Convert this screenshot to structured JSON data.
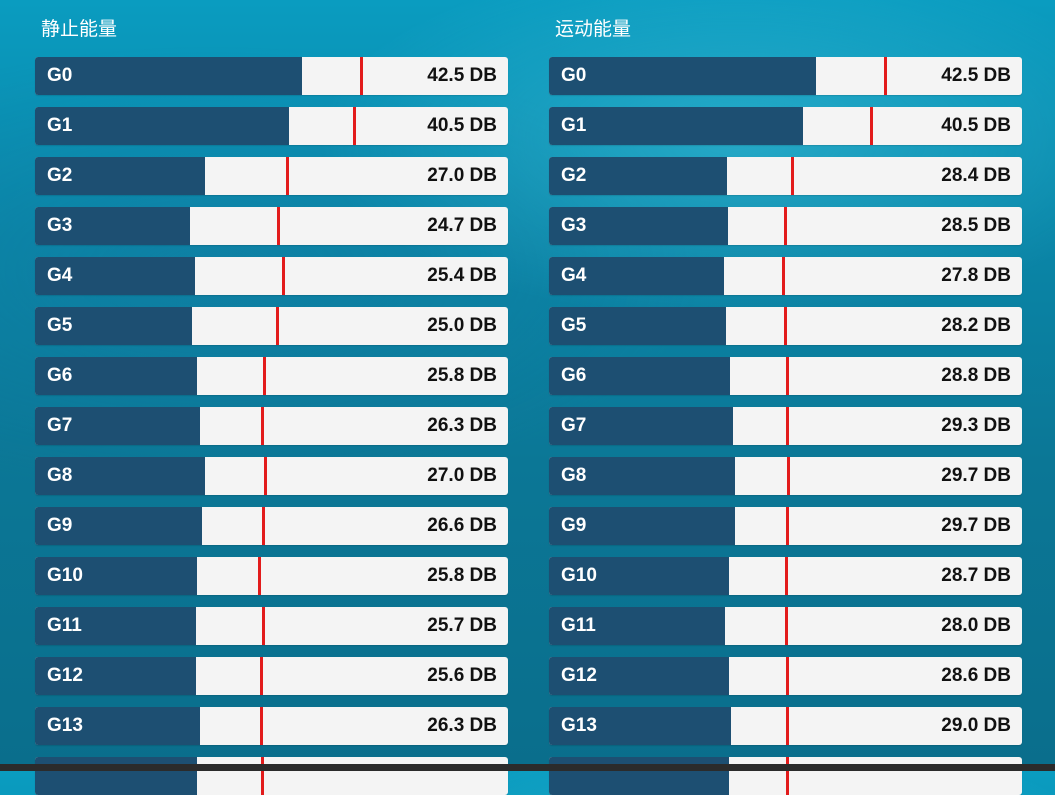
{
  "colors": {
    "bar_fill": "#1d4f72",
    "bar_track": "#f4f4f4",
    "marker": "#e21b1b",
    "label_text": "#ffffff",
    "value_text": "#111111",
    "background": "#0a86a8"
  },
  "panels": [
    {
      "id": "static",
      "title": "静止能量",
      "rows": [
        {
          "label": "G0",
          "value_text": "42.5 DB",
          "fill_fraction": 0.565,
          "marker_fraction": 0.69
        },
        {
          "label": "G1",
          "value_text": "40.5 DB",
          "fill_fraction": 0.537,
          "marker_fraction": 0.675
        },
        {
          "label": "G2",
          "value_text": "27.0 DB",
          "fill_fraction": 0.359,
          "marker_fraction": 0.532
        },
        {
          "label": "G3",
          "value_text": "24.7 DB",
          "fill_fraction": 0.328,
          "marker_fraction": 0.513
        },
        {
          "label": "G4",
          "value_text": "25.4 DB",
          "fill_fraction": 0.338,
          "marker_fraction": 0.524
        },
        {
          "label": "G5",
          "value_text": "25.0 DB",
          "fill_fraction": 0.332,
          "marker_fraction": 0.511
        },
        {
          "label": "G6",
          "value_text": "25.8 DB",
          "fill_fraction": 0.342,
          "marker_fraction": 0.484
        },
        {
          "label": "G7",
          "value_text": "26.3 DB",
          "fill_fraction": 0.349,
          "marker_fraction": 0.479
        },
        {
          "label": "G8",
          "value_text": "27.0 DB",
          "fill_fraction": 0.359,
          "marker_fraction": 0.486
        },
        {
          "label": "G9",
          "value_text": "26.6 DB",
          "fill_fraction": 0.353,
          "marker_fraction": 0.481
        },
        {
          "label": "G10",
          "value_text": "25.8 DB",
          "fill_fraction": 0.342,
          "marker_fraction": 0.474
        },
        {
          "label": "G11",
          "value_text": "25.7 DB",
          "fill_fraction": 0.341,
          "marker_fraction": 0.482
        },
        {
          "label": "G12",
          "value_text": "25.6 DB",
          "fill_fraction": 0.34,
          "marker_fraction": 0.477
        },
        {
          "label": "G13",
          "value_text": "26.3 DB",
          "fill_fraction": 0.349,
          "marker_fraction": 0.477
        },
        {
          "label": "",
          "value_text": "",
          "fill_fraction": 0.342,
          "marker_fraction": 0.479
        }
      ]
    },
    {
      "id": "motion",
      "title": "运动能量",
      "rows": [
        {
          "label": "G0",
          "value_text": "42.5 DB",
          "fill_fraction": 0.565,
          "marker_fraction": 0.71
        },
        {
          "label": "G1",
          "value_text": "40.5 DB",
          "fill_fraction": 0.537,
          "marker_fraction": 0.68
        },
        {
          "label": "G2",
          "value_text": "28.4 DB",
          "fill_fraction": 0.377,
          "marker_fraction": 0.514
        },
        {
          "label": "G3",
          "value_text": "28.5 DB",
          "fill_fraction": 0.378,
          "marker_fraction": 0.499
        },
        {
          "label": "G4",
          "value_text": "27.8 DB",
          "fill_fraction": 0.369,
          "marker_fraction": 0.495
        },
        {
          "label": "G5",
          "value_text": "28.2 DB",
          "fill_fraction": 0.374,
          "marker_fraction": 0.499
        },
        {
          "label": "G6",
          "value_text": "28.8 DB",
          "fill_fraction": 0.382,
          "marker_fraction": 0.503
        },
        {
          "label": "G7",
          "value_text": "29.3 DB",
          "fill_fraction": 0.389,
          "marker_fraction": 0.503
        },
        {
          "label": "G8",
          "value_text": "29.7 DB",
          "fill_fraction": 0.394,
          "marker_fraction": 0.505
        },
        {
          "label": "G9",
          "value_text": "29.7 DB",
          "fill_fraction": 0.394,
          "marker_fraction": 0.503
        },
        {
          "label": "G10",
          "value_text": "28.7 DB",
          "fill_fraction": 0.381,
          "marker_fraction": 0.501
        },
        {
          "label": "G11",
          "value_text": "28.0 DB",
          "fill_fraction": 0.372,
          "marker_fraction": 0.501
        },
        {
          "label": "G12",
          "value_text": "28.6 DB",
          "fill_fraction": 0.38,
          "marker_fraction": 0.503
        },
        {
          "label": "G13",
          "value_text": "29.0 DB",
          "fill_fraction": 0.385,
          "marker_fraction": 0.503
        },
        {
          "label": "",
          "value_text": "",
          "fill_fraction": 0.38,
          "marker_fraction": 0.503
        }
      ]
    }
  ]
}
